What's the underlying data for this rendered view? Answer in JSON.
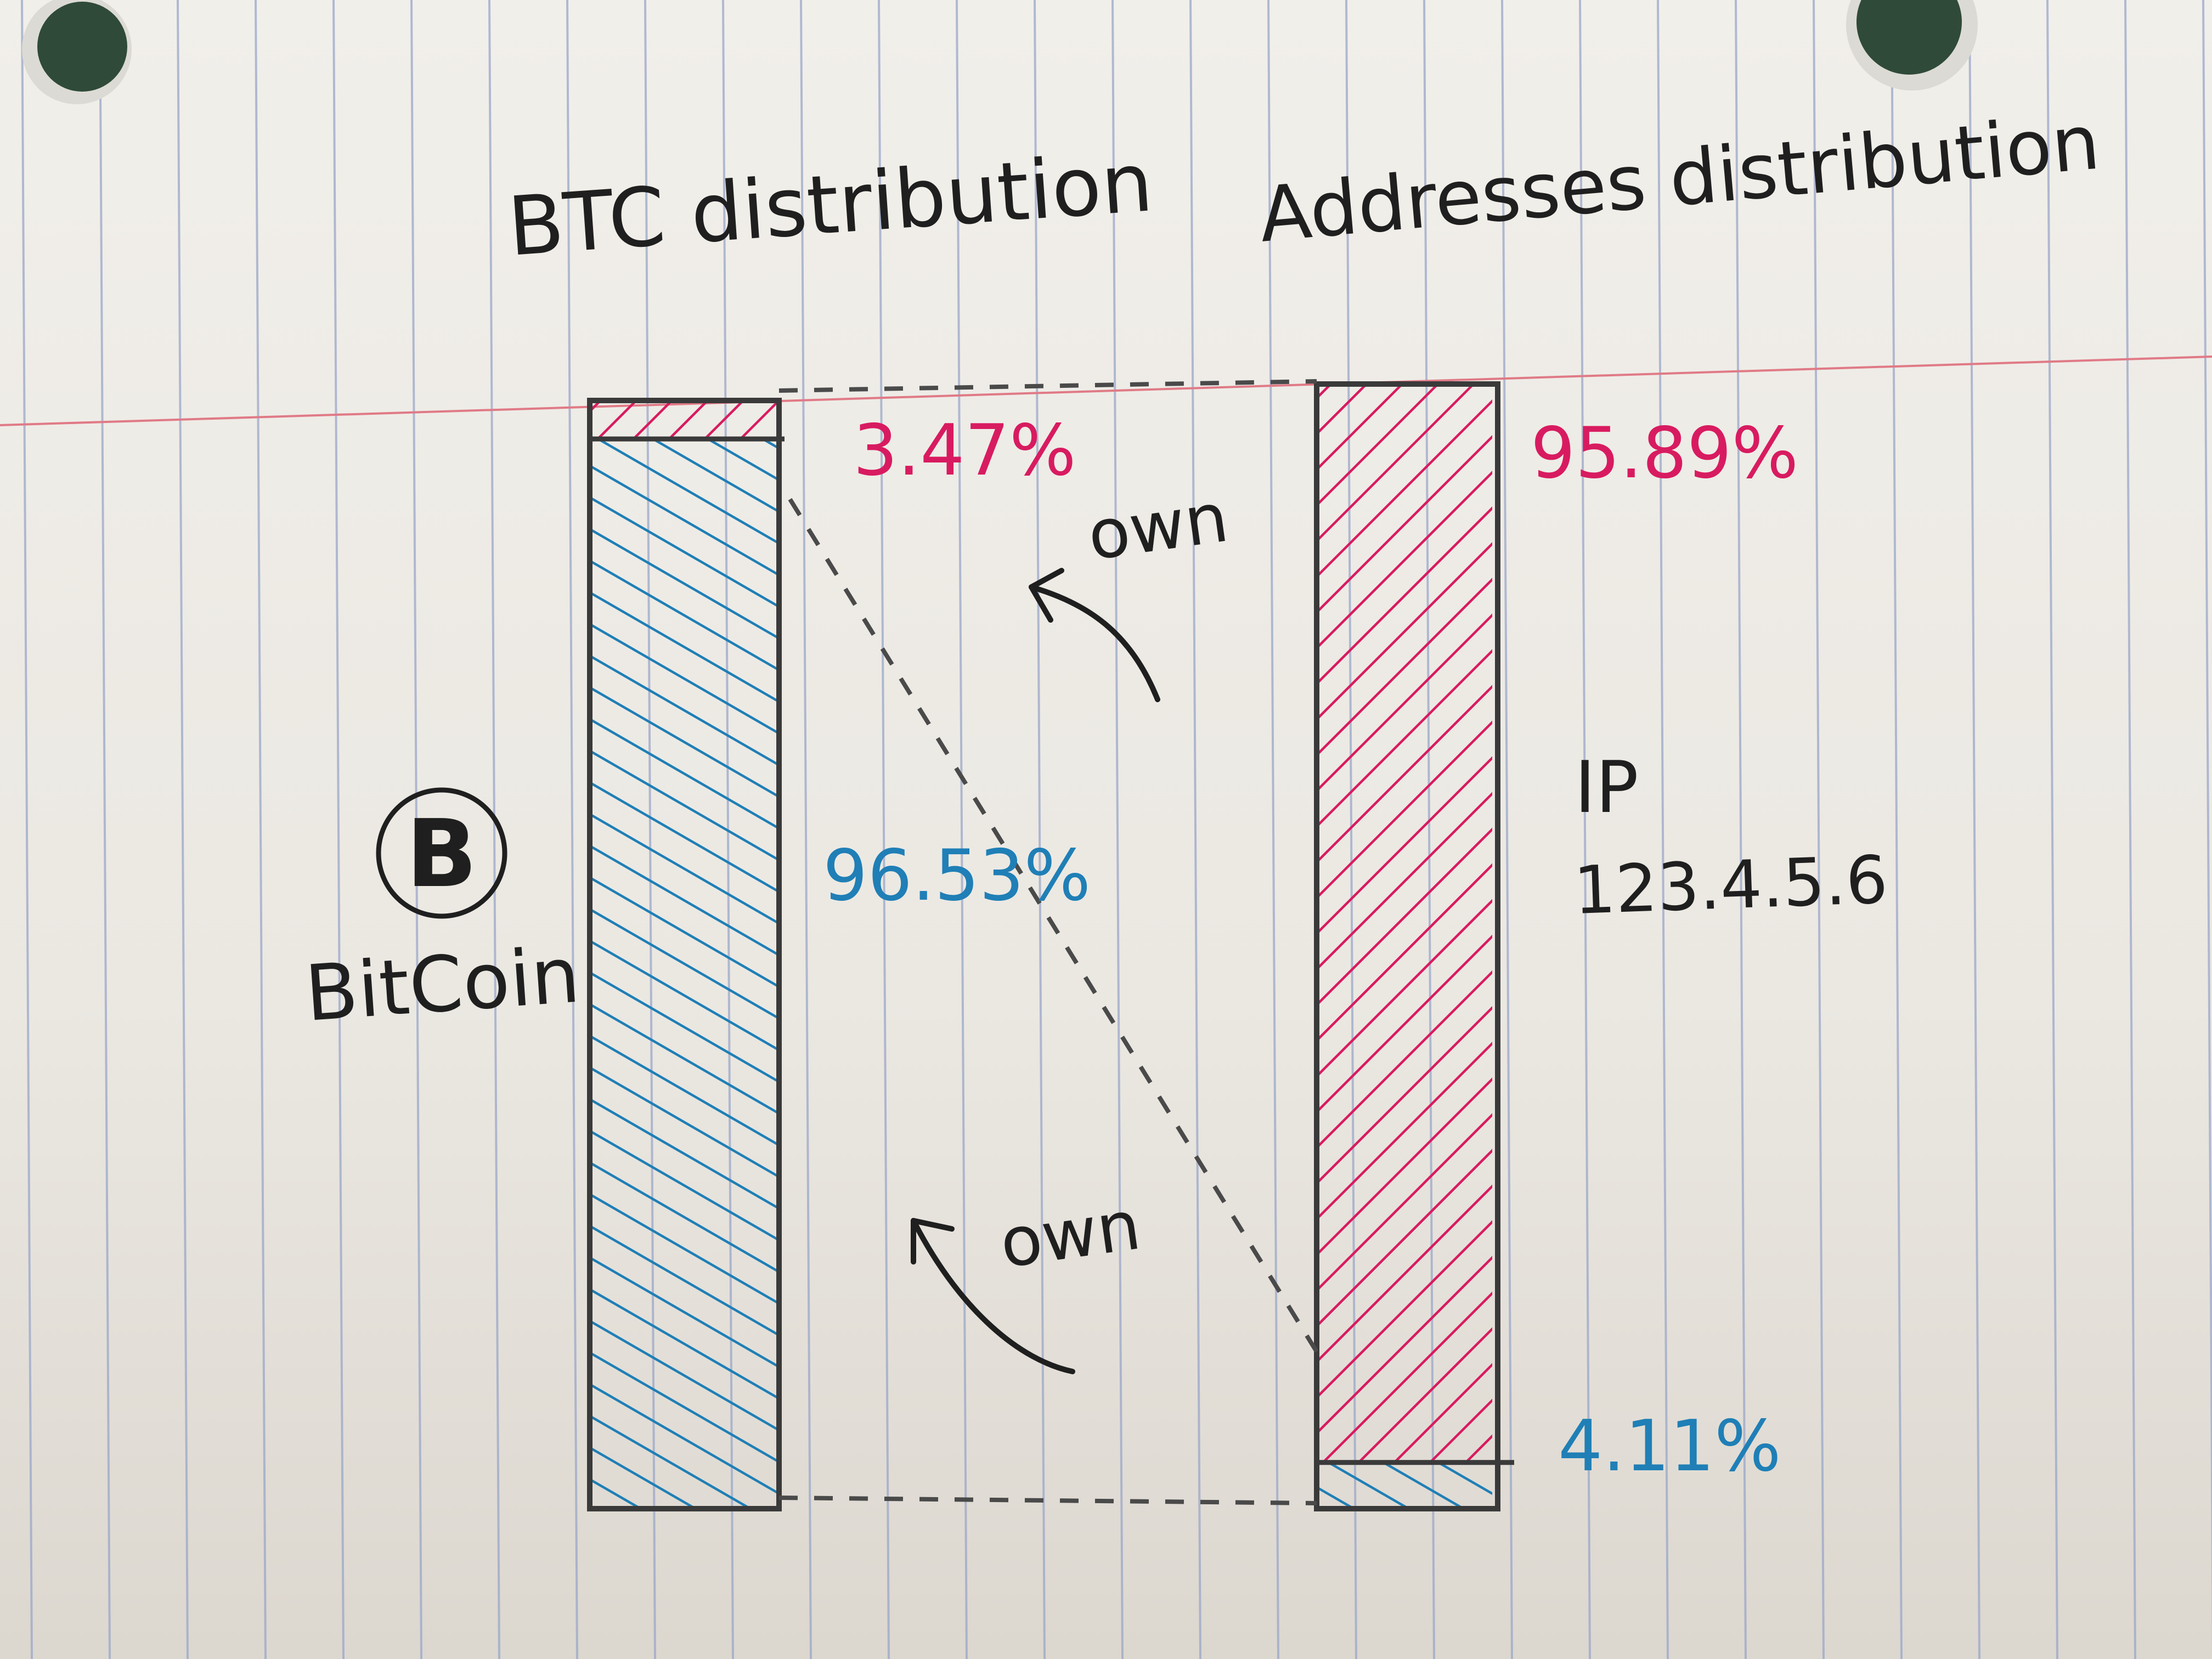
{
  "titles": {
    "left": "BTC distribution",
    "right": "Addresses distribution"
  },
  "labels": {
    "btc_top_pct": "3.47%",
    "btc_bottom_pct": "96.53%",
    "addr_top_pct": "95.89%",
    "addr_bottom_pct": "4.11%",
    "arrow_upper": "own",
    "arrow_lower": "own",
    "bitcoin_label": "BitCoin",
    "bitcoin_symbol": "B",
    "ip_label": "IP",
    "ip_value": "123.4.5.6"
  },
  "colors": {
    "pink": "#d81b60",
    "blue": "#1f7fb6",
    "ink": "#2a2a2a",
    "margin_line": "#e07a86",
    "ruled_line": "#9aa7c9"
  },
  "icons": [
    "bitcoin-logo-icon",
    "curved-arrow-icon",
    "punch-hole-icon"
  ],
  "chart_data": {
    "type": "bar",
    "stacked": true,
    "categories": [
      "BTC distribution",
      "Addresses distribution"
    ],
    "series": [
      {
        "values": [
          3.47,
          95.89
        ]
      },
      {
        "values": [
          96.53,
          4.11
        ]
      }
    ]
  }
}
